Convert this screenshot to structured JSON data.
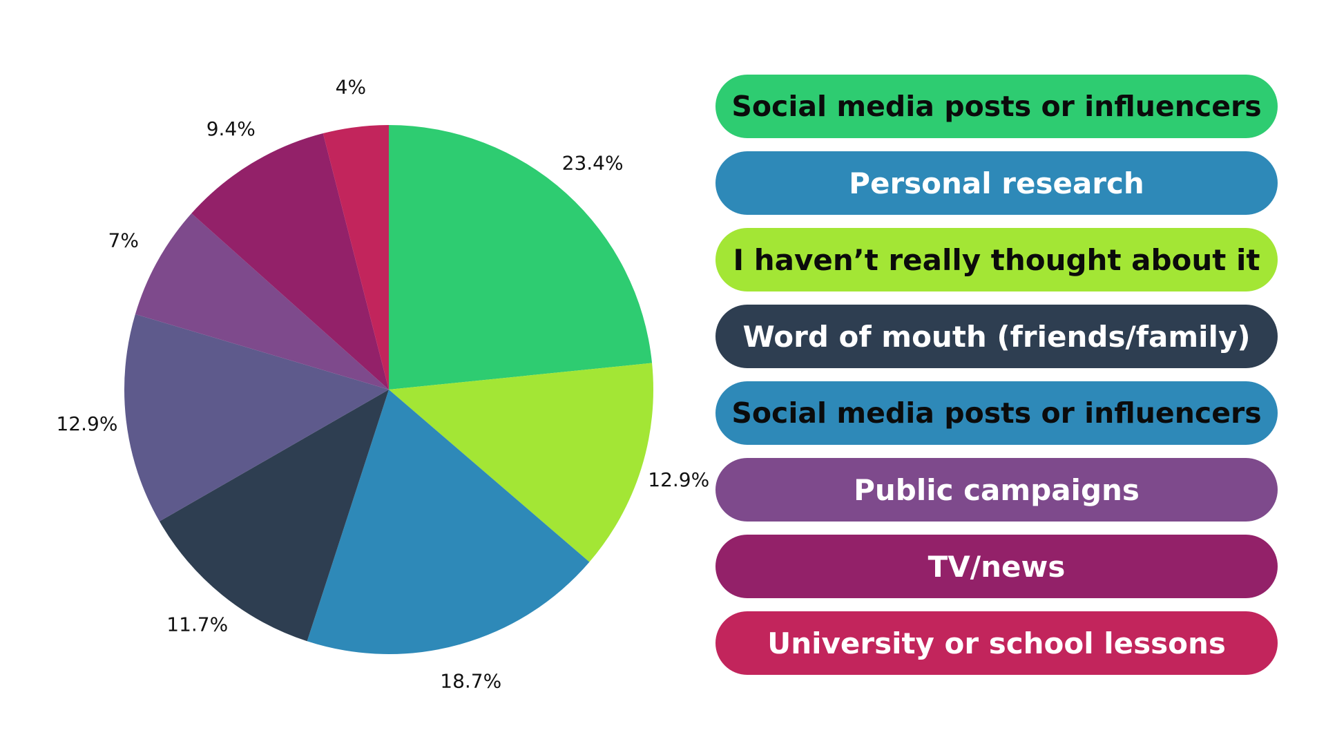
{
  "chart_data": {
    "type": "pie",
    "title": "",
    "start_angle_deg": 0,
    "direction": "clockwise",
    "slices": [
      {
        "value": 23.4,
        "label": "23.4%",
        "color": "#2ECC71"
      },
      {
        "value": 12.9,
        "label": "12.9%",
        "color": "#A3E635"
      },
      {
        "value": 18.7,
        "label": "18.7%",
        "color": "#2E89B8"
      },
      {
        "value": 11.7,
        "label": "11.7%",
        "color": "#2E3E51"
      },
      {
        "value": 12.9,
        "label": "12.9%",
        "color": "#5E5A8C"
      },
      {
        "value": 7.0,
        "label": "7%",
        "color": "#7E4A8C"
      },
      {
        "value": 9.4,
        "label": "9.4%",
        "color": "#932169"
      },
      {
        "value": 4.0,
        "label": "4%",
        "color": "#C2255C"
      }
    ],
    "legend_placement": "right",
    "legend": [
      {
        "text": "Social media posts or influencers",
        "color": "#2ECC71",
        "text_color": "#0B0B0B"
      },
      {
        "text": "Personal research",
        "color": "#2E89B8",
        "text_color": "#FFFFFF"
      },
      {
        "text": "I haven’t really thought about it",
        "color": "#A3E635",
        "text_color": "#0B0B0B"
      },
      {
        "text": "Word of mouth (friends/family)",
        "color": "#2E3E51",
        "text_color": "#FFFFFF"
      },
      {
        "text": "Social media posts or influencers",
        "color": "#2E89B8",
        "text_color": "#0B0B0B"
      },
      {
        "text": "Public campaigns",
        "color": "#7E4A8C",
        "text_color": "#FFFFFF"
      },
      {
        "text": "TV/news",
        "color": "#932169",
        "text_color": "#FFFFFF"
      },
      {
        "text": "University or school lessons",
        "color": "#C2255C",
        "text_color": "#FFFFFF"
      }
    ]
  }
}
